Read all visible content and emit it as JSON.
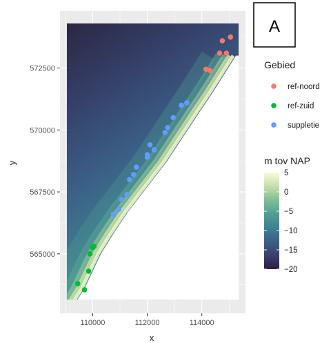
{
  "chart_data": {
    "type": "scatter",
    "subtype": "raster map with point overlay",
    "panel_label": "A",
    "xlabel": "x",
    "ylabel": "y",
    "xlim": [
      108800,
      115600
    ],
    "ylim": [
      562600,
      574800
    ],
    "x_ticks": [
      110000,
      112000,
      114000
    ],
    "x_tick_labels": [
      "110000",
      "112000",
      "114000"
    ],
    "y_ticks": [
      565000,
      567500,
      570000,
      572500
    ],
    "y_tick_labels": [
      "565000",
      "567500",
      "570000",
      "572500"
    ],
    "grid": true,
    "panel_background": "#ebebeb",
    "series_legend": {
      "title": "Gebied",
      "placement": "right",
      "entries": [
        {
          "name": "ref-noord",
          "color": "#f8766d"
        },
        {
          "name": "ref-zuid",
          "color": "#00ba38"
        },
        {
          "name": "suppletie",
          "color": "#619cff"
        }
      ]
    },
    "colorbar": {
      "title": "m tov NAP",
      "placement": "right",
      "min": -20,
      "max": 5,
      "ticks": [
        5,
        0,
        -5,
        -10,
        -15,
        -20
      ],
      "tick_labels": [
        "5",
        "0",
        "−5",
        "−10",
        "−15",
        "−20"
      ],
      "colors": [
        "#2c1e3d",
        "#3b3f6e",
        "#3c5f8a",
        "#3f8092",
        "#4f9f93",
        "#7fbf96",
        "#c4e0a8",
        "#fafbd8"
      ]
    },
    "raster_extent": {
      "x": [
        109050,
        115350
      ],
      "y": [
        563150,
        574300
      ]
    },
    "coastline": [
      [
        109300,
        562900
      ],
      [
        109700,
        563600
      ],
      [
        110000,
        564300
      ],
      [
        110300,
        565000
      ],
      [
        110750,
        565800
      ],
      [
        111300,
        566700
      ],
      [
        112000,
        567700
      ],
      [
        112700,
        568700
      ],
      [
        113300,
        569700
      ],
      [
        113900,
        570700
      ],
      [
        114450,
        571600
      ],
      [
        114850,
        572300
      ],
      [
        115250,
        573000
      ]
    ],
    "series": [
      {
        "name": "ref-noord",
        "color": "#f8766d",
        "x": [
          114150,
          114300,
          114650,
          114900,
          114750,
          115050
        ],
        "y": [
          572450,
          572400,
          573100,
          573100,
          573600,
          573750
        ]
      },
      {
        "name": "ref-zuid",
        "color": "#00ba38",
        "x": [
          109450,
          109700,
          109850,
          109900,
          110000,
          110050
        ],
        "y": [
          563800,
          563550,
          564300,
          565000,
          565250,
          565300
        ]
      },
      {
        "name": "suppletie",
        "color": "#619cff",
        "x": [
          110750,
          110950,
          111050,
          111250,
          111350,
          111500,
          111600,
          112000,
          112100,
          112250,
          112000,
          112650,
          112750,
          112950,
          113250,
          113450
        ],
        "y": [
          566600,
          566800,
          567200,
          567400,
          568000,
          568200,
          568500,
          568900,
          569400,
          569200,
          569000,
          569900,
          570100,
          570500,
          571000,
          571100
        ]
      }
    ]
  }
}
